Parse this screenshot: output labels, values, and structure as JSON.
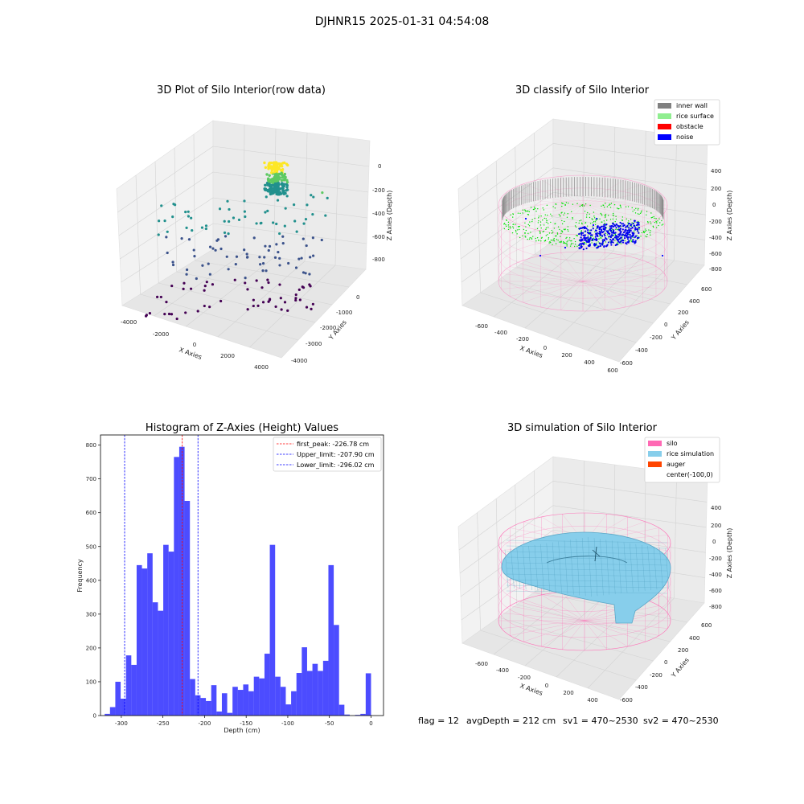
{
  "figure": {
    "suptitle": "DJHNR15 2025-01-31 04:54:08",
    "footer": {
      "flag": "flag = 12",
      "avg_depth": "avgDepth = 212 cm",
      "sv1": "sv1 = 470~2530",
      "sv2": "sv2 = 470~2530"
    }
  },
  "chart_data": [
    {
      "type": "scatter",
      "title": "3D Plot of Silo Interior(row data)",
      "xlabel": "X Axies",
      "ylabel": "Y Axies",
      "zlabel": "Z Axies (Depth)",
      "x_ticks": [
        "-4000",
        "-2000",
        "0",
        "2000",
        "4000"
      ],
      "y_ticks": [
        "0",
        "-1000",
        "-2000",
        "-3000",
        "-4000"
      ],
      "z_ticks": [
        "0",
        "-200",
        "-400",
        "-600",
        "-800"
      ],
      "colormap": "viridis"
    },
    {
      "type": "scatter",
      "title": "3D classify of Silo Interior",
      "xlabel": "X Axies",
      "ylabel": "Y Axies",
      "zlabel": "Z Axies (Depth)",
      "x_ticks": [
        "-600",
        "-400",
        "-200",
        "0",
        "200",
        "400",
        "600"
      ],
      "y_ticks": [
        "600",
        "400",
        "200",
        "0",
        "-200",
        "-400",
        "-600"
      ],
      "z_ticks": [
        "400",
        "200",
        "0",
        "-200",
        "-400",
        "-600",
        "-800"
      ],
      "legend_position": "top-right",
      "legend": [
        {
          "label": "inner wall",
          "color": "#808080"
        },
        {
          "label": "rice surface",
          "color": "#90ee90"
        },
        {
          "label": "obstacle",
          "color": "#ff0000"
        },
        {
          "label": "noise",
          "color": "#0000ff"
        }
      ]
    },
    {
      "type": "bar",
      "title": "Histogram of Z-Axies (Height) Values",
      "xlabel": "Depth (cm)",
      "ylabel": "Frequency",
      "xlim": [
        -325,
        15
      ],
      "ylim": [
        0,
        830
      ],
      "x_ticks": [
        -300,
        -250,
        -200,
        -150,
        -100,
        -50,
        0
      ],
      "y_ticks": [
        0,
        100,
        200,
        300,
        400,
        500,
        600,
        700,
        800
      ],
      "bin_start": -320,
      "bin_width": 6.4,
      "values": [
        5,
        25,
        100,
        50,
        178,
        150,
        445,
        435,
        480,
        335,
        310,
        505,
        485,
        765,
        795,
        635,
        108,
        60,
        52,
        43,
        90,
        12,
        66,
        8,
        85,
        76,
        92,
        72,
        115,
        110,
        183,
        505,
        115,
        85,
        33,
        72,
        126,
        202,
        132,
        153,
        132,
        162,
        445,
        268,
        32,
        3,
        0,
        2,
        5,
        125
      ],
      "bar_color": "#0000ff",
      "vlines": [
        {
          "label": "first_peak: -226.78 cm",
          "value": -226.78,
          "color": "#ff0000"
        },
        {
          "label": "Upper_limit: -207.90 cm",
          "value": -207.9,
          "color": "#0000ff"
        },
        {
          "label": "Lower_limit: -296.02 cm",
          "value": -296.02,
          "color": "#0000ff"
        }
      ],
      "legend_position": "top-right"
    },
    {
      "type": "area",
      "title": "3D simulation of Silo Interior",
      "xlabel": "X Axies",
      "ylabel": "Y Axies",
      "zlabel": "Z Axies (Depth)",
      "x_ticks": [
        "-600",
        "-400",
        "-200",
        "0",
        "200",
        "400"
      ],
      "y_ticks": [
        "600",
        "400",
        "200",
        "0",
        "-200",
        "-400",
        "-600"
      ],
      "z_ticks": [
        "400",
        "200",
        "0",
        "-200",
        "-400",
        "-600",
        "-800"
      ],
      "legend_position": "top-right",
      "legend": [
        {
          "label": "silo",
          "color": "#ff69b4"
        },
        {
          "label": "rice simulation",
          "color": "#87ceeb"
        },
        {
          "label": "auger",
          "color": "#ff4500"
        },
        {
          "label": "center(-100,0)",
          "color": "#ffffff"
        }
      ]
    }
  ]
}
